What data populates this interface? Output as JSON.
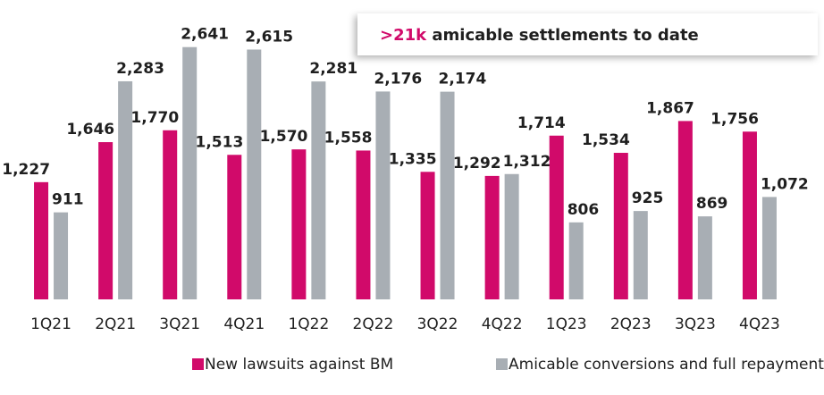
{
  "chart_data": {
    "type": "bar",
    "categories": [
      "1Q21",
      "2Q21",
      "3Q21",
      "4Q21",
      "1Q22",
      "2Q22",
      "3Q22",
      "4Q22",
      "1Q23",
      "2Q23",
      "3Q23",
      "4Q23"
    ],
    "series": [
      {
        "name": "New lawsuits against BM",
        "color": "#d10a6a",
        "values": [
          1227,
          1646,
          1770,
          1513,
          1570,
          1558,
          1335,
          1292,
          1714,
          1534,
          1867,
          1756
        ],
        "value_labels": [
          "1,227",
          "1,646",
          "1,770",
          "1,513",
          "1,570",
          "1,558",
          "1,335",
          "1,292",
          "1,714",
          "1,534",
          "1,867",
          "1,756"
        ]
      },
      {
        "name": "Amicable conversions and full repayments",
        "color": "#a8aeb4",
        "values": [
          911,
          2283,
          2641,
          2615,
          2281,
          2176,
          2174,
          1312,
          806,
          925,
          869,
          1072
        ],
        "value_labels": [
          "911",
          "2,283",
          "2,641",
          "2,615",
          "2,281",
          "2,176",
          "2,174",
          "1,312",
          "806",
          "925",
          "869",
          "1,072"
        ]
      }
    ],
    "ylim": [
      0,
      2900
    ],
    "annotation": {
      "highlight": ">21k",
      "text": "amicable settlements to date"
    }
  }
}
